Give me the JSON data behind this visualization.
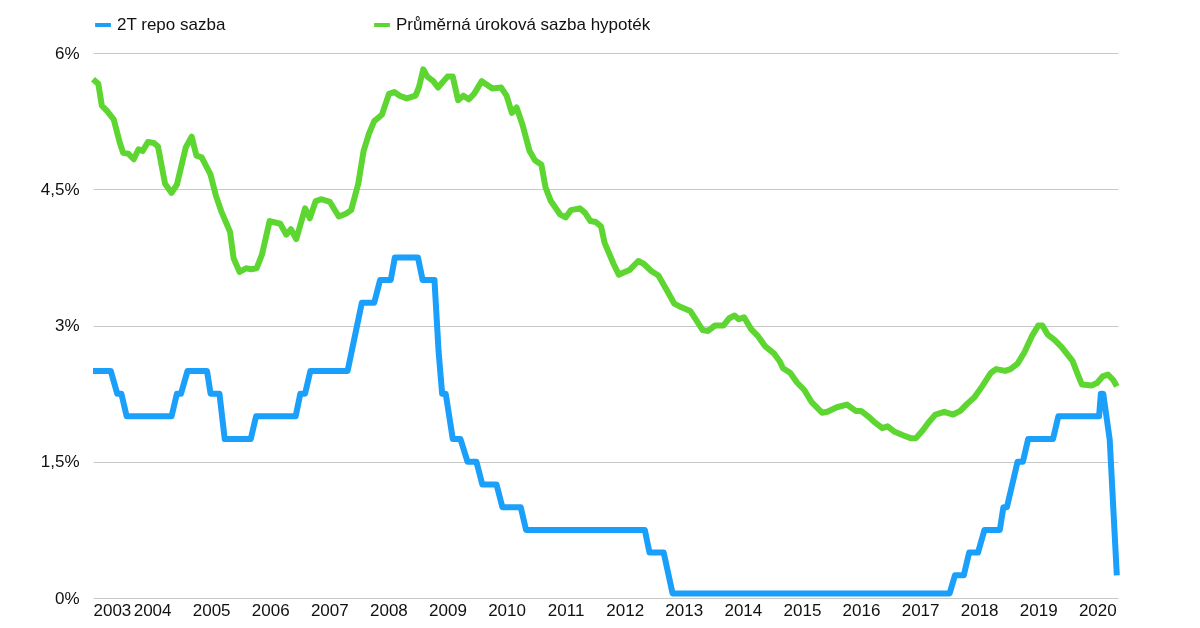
{
  "chart_data": {
    "type": "line",
    "legend": "top",
    "grid": "y",
    "marker": "none",
    "line_style": "solid",
    "xlim": [
      2003,
      2020.35
    ],
    "xticks": [
      2003,
      2004,
      2005,
      2006,
      2007,
      2008,
      2009,
      2010,
      2011,
      2012,
      2013,
      2014,
      2015,
      2016,
      2017,
      2018,
      2019,
      2020
    ],
    "ylim": [
      0,
      6
    ],
    "yticks": [
      {
        "value": 0,
        "label": "0%"
      },
      {
        "value": 1.5,
        "label": "1,5%"
      },
      {
        "value": 3,
        "label": "3%"
      },
      {
        "value": 4.5,
        "label": "4,5%"
      },
      {
        "value": 6,
        "label": "6%"
      }
    ],
    "series": [
      {
        "name": "2T repo sazba",
        "color": "#1a9ffa",
        "x": [
          2003.0,
          2003.3,
          2003.41,
          2003.48,
          2003.57,
          2004.33,
          2004.42,
          2004.49,
          2004.6,
          2004.93,
          2004.99,
          2005.14,
          2005.23,
          2005.67,
          2005.76,
          2006.43,
          2006.51,
          2006.59,
          2006.68,
          2007.31,
          2007.55,
          2007.76,
          2007.86,
          2008.04,
          2008.11,
          2008.5,
          2008.58,
          2008.78,
          2008.85,
          2008.91,
          2008.97,
          2009.09,
          2009.22,
          2009.34,
          2009.49,
          2009.59,
          2009.83,
          2009.93,
          2010.24,
          2010.33,
          2012.34,
          2012.42,
          2012.66,
          2012.81,
          2017.5,
          2017.59,
          2017.74,
          2017.83,
          2017.98,
          2018.09,
          2018.35,
          2018.41,
          2018.47,
          2018.65,
          2018.74,
          2018.83,
          2019.25,
          2019.34,
          2020.03,
          2020.06,
          2020.1,
          2020.21,
          2020.33
        ],
        "values": [
          2.5,
          2.5,
          2.25,
          2.25,
          2.0,
          2.0,
          2.25,
          2.25,
          2.5,
          2.5,
          2.25,
          2.25,
          1.75,
          1.75,
          2.0,
          2.0,
          2.25,
          2.25,
          2.5,
          2.5,
          3.25,
          3.25,
          3.5,
          3.5,
          3.75,
          3.75,
          3.5,
          3.5,
          2.71,
          2.25,
          2.25,
          1.75,
          1.75,
          1.5,
          1.5,
          1.25,
          1.25,
          1.0,
          1.0,
          0.75,
          0.75,
          0.5,
          0.5,
          0.05,
          0.05,
          0.25,
          0.25,
          0.5,
          0.5,
          0.75,
          0.75,
          1.0,
          1.0,
          1.5,
          1.5,
          1.75,
          1.75,
          2.0,
          2.0,
          2.25,
          2.25,
          1.74,
          0.25
        ]
      },
      {
        "name": "Průměrná úroková sazba hypoték",
        "color": "#5ed631",
        "x": [
          2003.0,
          2003.09,
          2003.15,
          2003.24,
          2003.35,
          2003.45,
          2003.51,
          2003.6,
          2003.69,
          2003.77,
          2003.84,
          2003.93,
          2004.03,
          2004.1,
          2004.22,
          2004.33,
          2004.42,
          2004.57,
          2004.67,
          2004.75,
          2004.84,
          2004.99,
          2005.08,
          2005.17,
          2005.32,
          2005.38,
          2005.48,
          2005.59,
          2005.68,
          2005.77,
          2005.86,
          2005.99,
          2006.17,
          2006.27,
          2006.35,
          2006.44,
          2006.59,
          2006.67,
          2006.77,
          2006.87,
          2007.01,
          2007.16,
          2007.28,
          2007.37,
          2007.49,
          2007.58,
          2007.67,
          2007.76,
          2007.89,
          2008.01,
          2008.1,
          2008.19,
          2008.31,
          2008.46,
          2008.52,
          2008.59,
          2008.66,
          2008.76,
          2008.84,
          2009.0,
          2009.09,
          2009.18,
          2009.27,
          2009.36,
          2009.45,
          2009.58,
          2009.76,
          2009.91,
          2010.0,
          2010.09,
          2010.17,
          2010.27,
          2010.39,
          2010.48,
          2010.59,
          2010.66,
          2010.75,
          2010.91,
          2011.0,
          2011.09,
          2011.24,
          2011.33,
          2011.42,
          2011.51,
          2011.6,
          2011.66,
          2011.81,
          2011.9,
          2012.08,
          2012.23,
          2012.32,
          2012.45,
          2012.57,
          2012.72,
          2012.84,
          2012.96,
          2013.11,
          2013.2,
          2013.32,
          2013.41,
          2013.53,
          2013.67,
          2013.77,
          2013.86,
          2013.93,
          2014.02,
          2014.14,
          2014.26,
          2014.38,
          2014.53,
          2014.62,
          2014.68,
          2014.8,
          2014.92,
          2015.04,
          2015.16,
          2015.34,
          2015.43,
          2015.59,
          2015.76,
          2015.91,
          2016.0,
          2016.12,
          2016.24,
          2016.36,
          2016.45,
          2016.57,
          2016.72,
          2016.84,
          2016.93,
          2017.05,
          2017.14,
          2017.26,
          2017.41,
          2017.56,
          2017.68,
          2017.8,
          2017.92,
          2018.05,
          2018.2,
          2018.29,
          2018.44,
          2018.53,
          2018.65,
          2018.77,
          2018.89,
          2019.0,
          2019.07,
          2019.16,
          2019.28,
          2019.4,
          2019.58,
          2019.67,
          2019.74,
          2019.91,
          2020.0,
          2020.09,
          2020.18,
          2020.27,
          2020.33
        ],
        "values": [
          5.71,
          5.66,
          5.42,
          5.36,
          5.27,
          5.02,
          4.9,
          4.89,
          4.83,
          4.94,
          4.92,
          5.02,
          5.01,
          4.97,
          4.56,
          4.46,
          4.55,
          4.96,
          5.08,
          4.87,
          4.85,
          4.66,
          4.43,
          4.26,
          4.03,
          3.74,
          3.59,
          3.63,
          3.62,
          3.63,
          3.78,
          4.15,
          4.12,
          4.0,
          4.06,
          3.95,
          4.29,
          4.18,
          4.37,
          4.39,
          4.36,
          4.2,
          4.23,
          4.27,
          4.56,
          4.92,
          5.11,
          5.25,
          5.32,
          5.55,
          5.57,
          5.53,
          5.5,
          5.53,
          5.63,
          5.82,
          5.74,
          5.69,
          5.62,
          5.74,
          5.74,
          5.48,
          5.53,
          5.49,
          5.55,
          5.69,
          5.61,
          5.62,
          5.53,
          5.34,
          5.4,
          5.21,
          4.92,
          4.82,
          4.77,
          4.52,
          4.37,
          4.22,
          4.19,
          4.27,
          4.29,
          4.24,
          4.15,
          4.14,
          4.09,
          3.91,
          3.68,
          3.56,
          3.61,
          3.71,
          3.68,
          3.6,
          3.55,
          3.38,
          3.24,
          3.2,
          3.16,
          3.07,
          2.95,
          2.94,
          3.0,
          3.0,
          3.08,
          3.11,
          3.07,
          3.09,
          2.96,
          2.88,
          2.77,
          2.69,
          2.61,
          2.53,
          2.48,
          2.37,
          2.29,
          2.16,
          2.04,
          2.05,
          2.1,
          2.13,
          2.06,
          2.06,
          2.0,
          1.93,
          1.87,
          1.89,
          1.83,
          1.79,
          1.76,
          1.76,
          1.85,
          1.93,
          2.02,
          2.05,
          2.02,
          2.06,
          2.14,
          2.21,
          2.33,
          2.48,
          2.52,
          2.5,
          2.52,
          2.58,
          2.71,
          2.88,
          3.0,
          3.0,
          2.9,
          2.84,
          2.76,
          2.61,
          2.46,
          2.35,
          2.34,
          2.37,
          2.44,
          2.46,
          2.4,
          2.33
        ]
      }
    ]
  }
}
